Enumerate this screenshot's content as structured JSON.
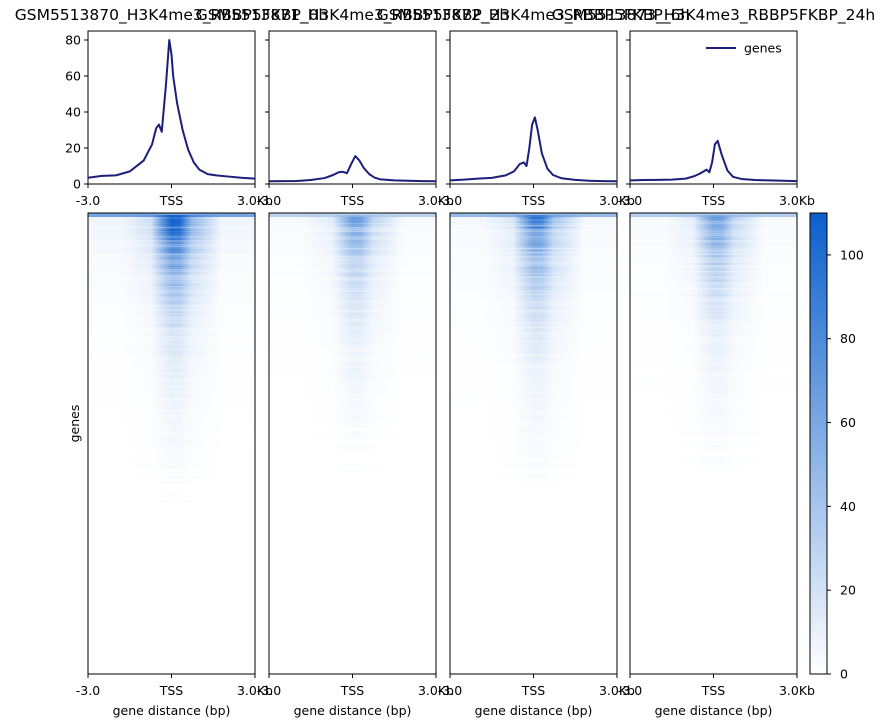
{
  "chart_data": {
    "type": "heatmap",
    "x_ticks": [
      "-3.0",
      "TSS",
      "3.0Kb"
    ],
    "x_values": [
      -3000,
      0,
      3000
    ],
    "xlabel": "gene distance (bp)",
    "heatmap_ylabel": "genes",
    "profile_ylim": [
      0,
      85
    ],
    "profile_yticks": [
      0,
      20,
      40,
      60,
      80
    ],
    "colorbar": {
      "min": 0,
      "max": 110,
      "ticks": [
        0,
        20,
        40,
        60,
        80,
        100
      ],
      "low_color": "#ffffff",
      "high_color": "#0b5fcc"
    },
    "legend": {
      "label": "genes",
      "color": "#1b1f7a",
      "position": "top-right"
    },
    "samples": [
      {
        "title": "GSM5513870_H3K4me3_RBBP5FKBP_0h",
        "profile": {
          "x": [
            -3000,
            -2500,
            -2000,
            -1500,
            -1000,
            -700,
            -550,
            -450,
            -350,
            -200,
            -80,
            0,
            60,
            200,
            400,
            600,
            800,
            1000,
            1300,
            1600,
            2000,
            2500,
            3000
          ],
          "y": [
            3.5,
            4.5,
            4.8,
            7,
            13,
            22,
            31,
            33,
            29,
            55,
            80,
            72,
            60,
            45,
            30,
            19,
            12,
            8,
            5.5,
            4.8,
            4.2,
            3.5,
            3
          ]
        },
        "heat_intensity": 1.0
      },
      {
        "title": "GSM5513871_H3K4me3_RBBP5FKBP_2h",
        "profile": {
          "x": [
            -3000,
            -2500,
            -2000,
            -1500,
            -1000,
            -700,
            -500,
            -350,
            -200,
            -50,
            100,
            250,
            400,
            600,
            800,
            1000,
            1500,
            2000,
            2500,
            3000
          ],
          "y": [
            1.5,
            1.6,
            1.7,
            2.2,
            3.3,
            5,
            6.5,
            6.8,
            6,
            11,
            15.5,
            13,
            9,
            5.5,
            3.5,
            2.6,
            2,
            1.8,
            1.6,
            1.5
          ]
        },
        "heat_intensity": 0.5
      },
      {
        "title": "GSM5513872_H3K4me3_RBBP5FKBP_6h",
        "profile": {
          "x": [
            -3000,
            -2500,
            -2000,
            -1500,
            -1000,
            -700,
            -500,
            -350,
            -250,
            -150,
            -50,
            50,
            150,
            300,
            500,
            700,
            1000,
            1500,
            2000,
            2500,
            3000
          ],
          "y": [
            2,
            2.4,
            3,
            3.4,
            4.8,
            7,
            11,
            12,
            10,
            20,
            33,
            37,
            30,
            17,
            8.5,
            5,
            3.2,
            2.3,
            1.8,
            1.6,
            1.5
          ]
        },
        "heat_intensity": 0.75
      },
      {
        "title": "GSM5513873_H3K4me3_RBBP5FKBP_24h",
        "profile": {
          "x": [
            -3000,
            -2500,
            -2000,
            -1500,
            -1000,
            -700,
            -500,
            -350,
            -250,
            -150,
            -50,
            50,
            150,
            300,
            500,
            700,
            1000,
            1500,
            2000,
            2500,
            3000
          ],
          "y": [
            2,
            2.2,
            2.3,
            2.4,
            3,
            4.3,
            5.7,
            7,
            8,
            6.5,
            12,
            22,
            24,
            16,
            7.5,
            4,
            2.8,
            2.2,
            2,
            1.8,
            1.6
          ]
        },
        "heat_intensity": 0.55
      }
    ]
  }
}
